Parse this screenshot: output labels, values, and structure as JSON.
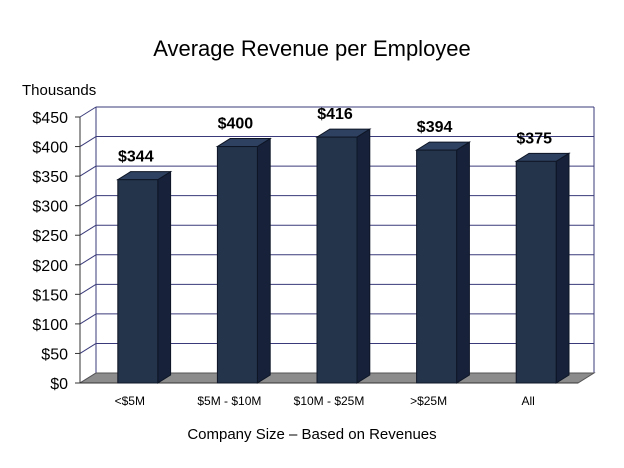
{
  "chart_data": {
    "type": "bar",
    "title": "Average Revenue per Employee",
    "unit_label": "Thousands",
    "xlabel": "Company Size – Based on Revenues",
    "ylabel": "",
    "categories": [
      "<$5M",
      "$5M - $10M",
      "$10M - $25M",
      ">$25M",
      "All"
    ],
    "values": [
      344,
      400,
      416,
      394,
      375
    ],
    "data_labels": [
      "$344",
      "$400",
      "$416",
      "$394",
      "$375"
    ],
    "ylim": [
      0,
      450
    ],
    "yticks": [
      0,
      50,
      100,
      150,
      200,
      250,
      300,
      350,
      400,
      450
    ],
    "ytick_labels": [
      "$0",
      "$50",
      "$100",
      "$150",
      "$200",
      "$250",
      "$300",
      "$350",
      "$400",
      "$450"
    ],
    "grid": true,
    "legend": "none",
    "style": "3d-bar"
  },
  "colors": {
    "bar_front": "#24344a",
    "bar_side": "#17223a",
    "bar_top": "#2f4160",
    "bar_outline": "#0e1626",
    "floor": "#8c8c8c",
    "grid": "#3a3a7a",
    "wall": "#ffffff"
  }
}
